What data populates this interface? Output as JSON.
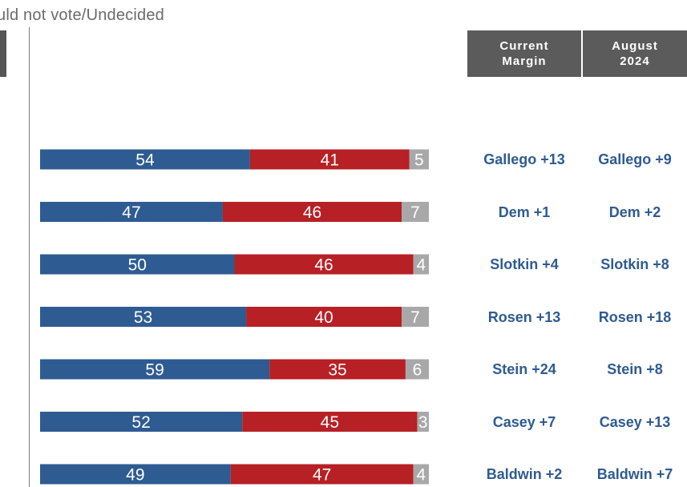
{
  "legend": {
    "partial_text": "uld not vote/Undecided"
  },
  "headers": {
    "current_margin": "Current\nMargin",
    "august_2024": "August\n2024"
  },
  "colors": {
    "dem": "#2e5b92",
    "rep": "#b72025",
    "undecided": "#a8a8a8",
    "header_bg": "#5b5b5b",
    "margin_text": "#2e5b92"
  },
  "chart_data": {
    "type": "bar",
    "orientation": "horizontal",
    "stacked": true,
    "categories": [
      "",
      "",
      "",
      "",
      "",
      "",
      ""
    ],
    "series": [
      {
        "values": [
          54,
          47,
          50,
          53,
          59,
          52,
          49
        ],
        "color": "#2e5b92"
      },
      {
        "values": [
          41,
          46,
          46,
          40,
          35,
          45,
          47
        ],
        "color": "#b72025"
      },
      {
        "name": "Would not vote/Undecided",
        "values": [
          5,
          7,
          4,
          7,
          6,
          3,
          4
        ],
        "color": "#a8a8a8"
      }
    ],
    "xlim": [
      0,
      100
    ],
    "grid": false,
    "table": {
      "current_margin": [
        "Gallego +13",
        "Dem +1",
        "Slotkin +4",
        "Rosen +13",
        "Stein +24",
        "Casey +7",
        "Baldwin +2"
      ],
      "august_2024": [
        "Gallego +9",
        "Dem +2",
        "Slotkin +8",
        "Rosen +18",
        "Stein +8",
        "Casey +13",
        "Baldwin +7"
      ]
    }
  }
}
